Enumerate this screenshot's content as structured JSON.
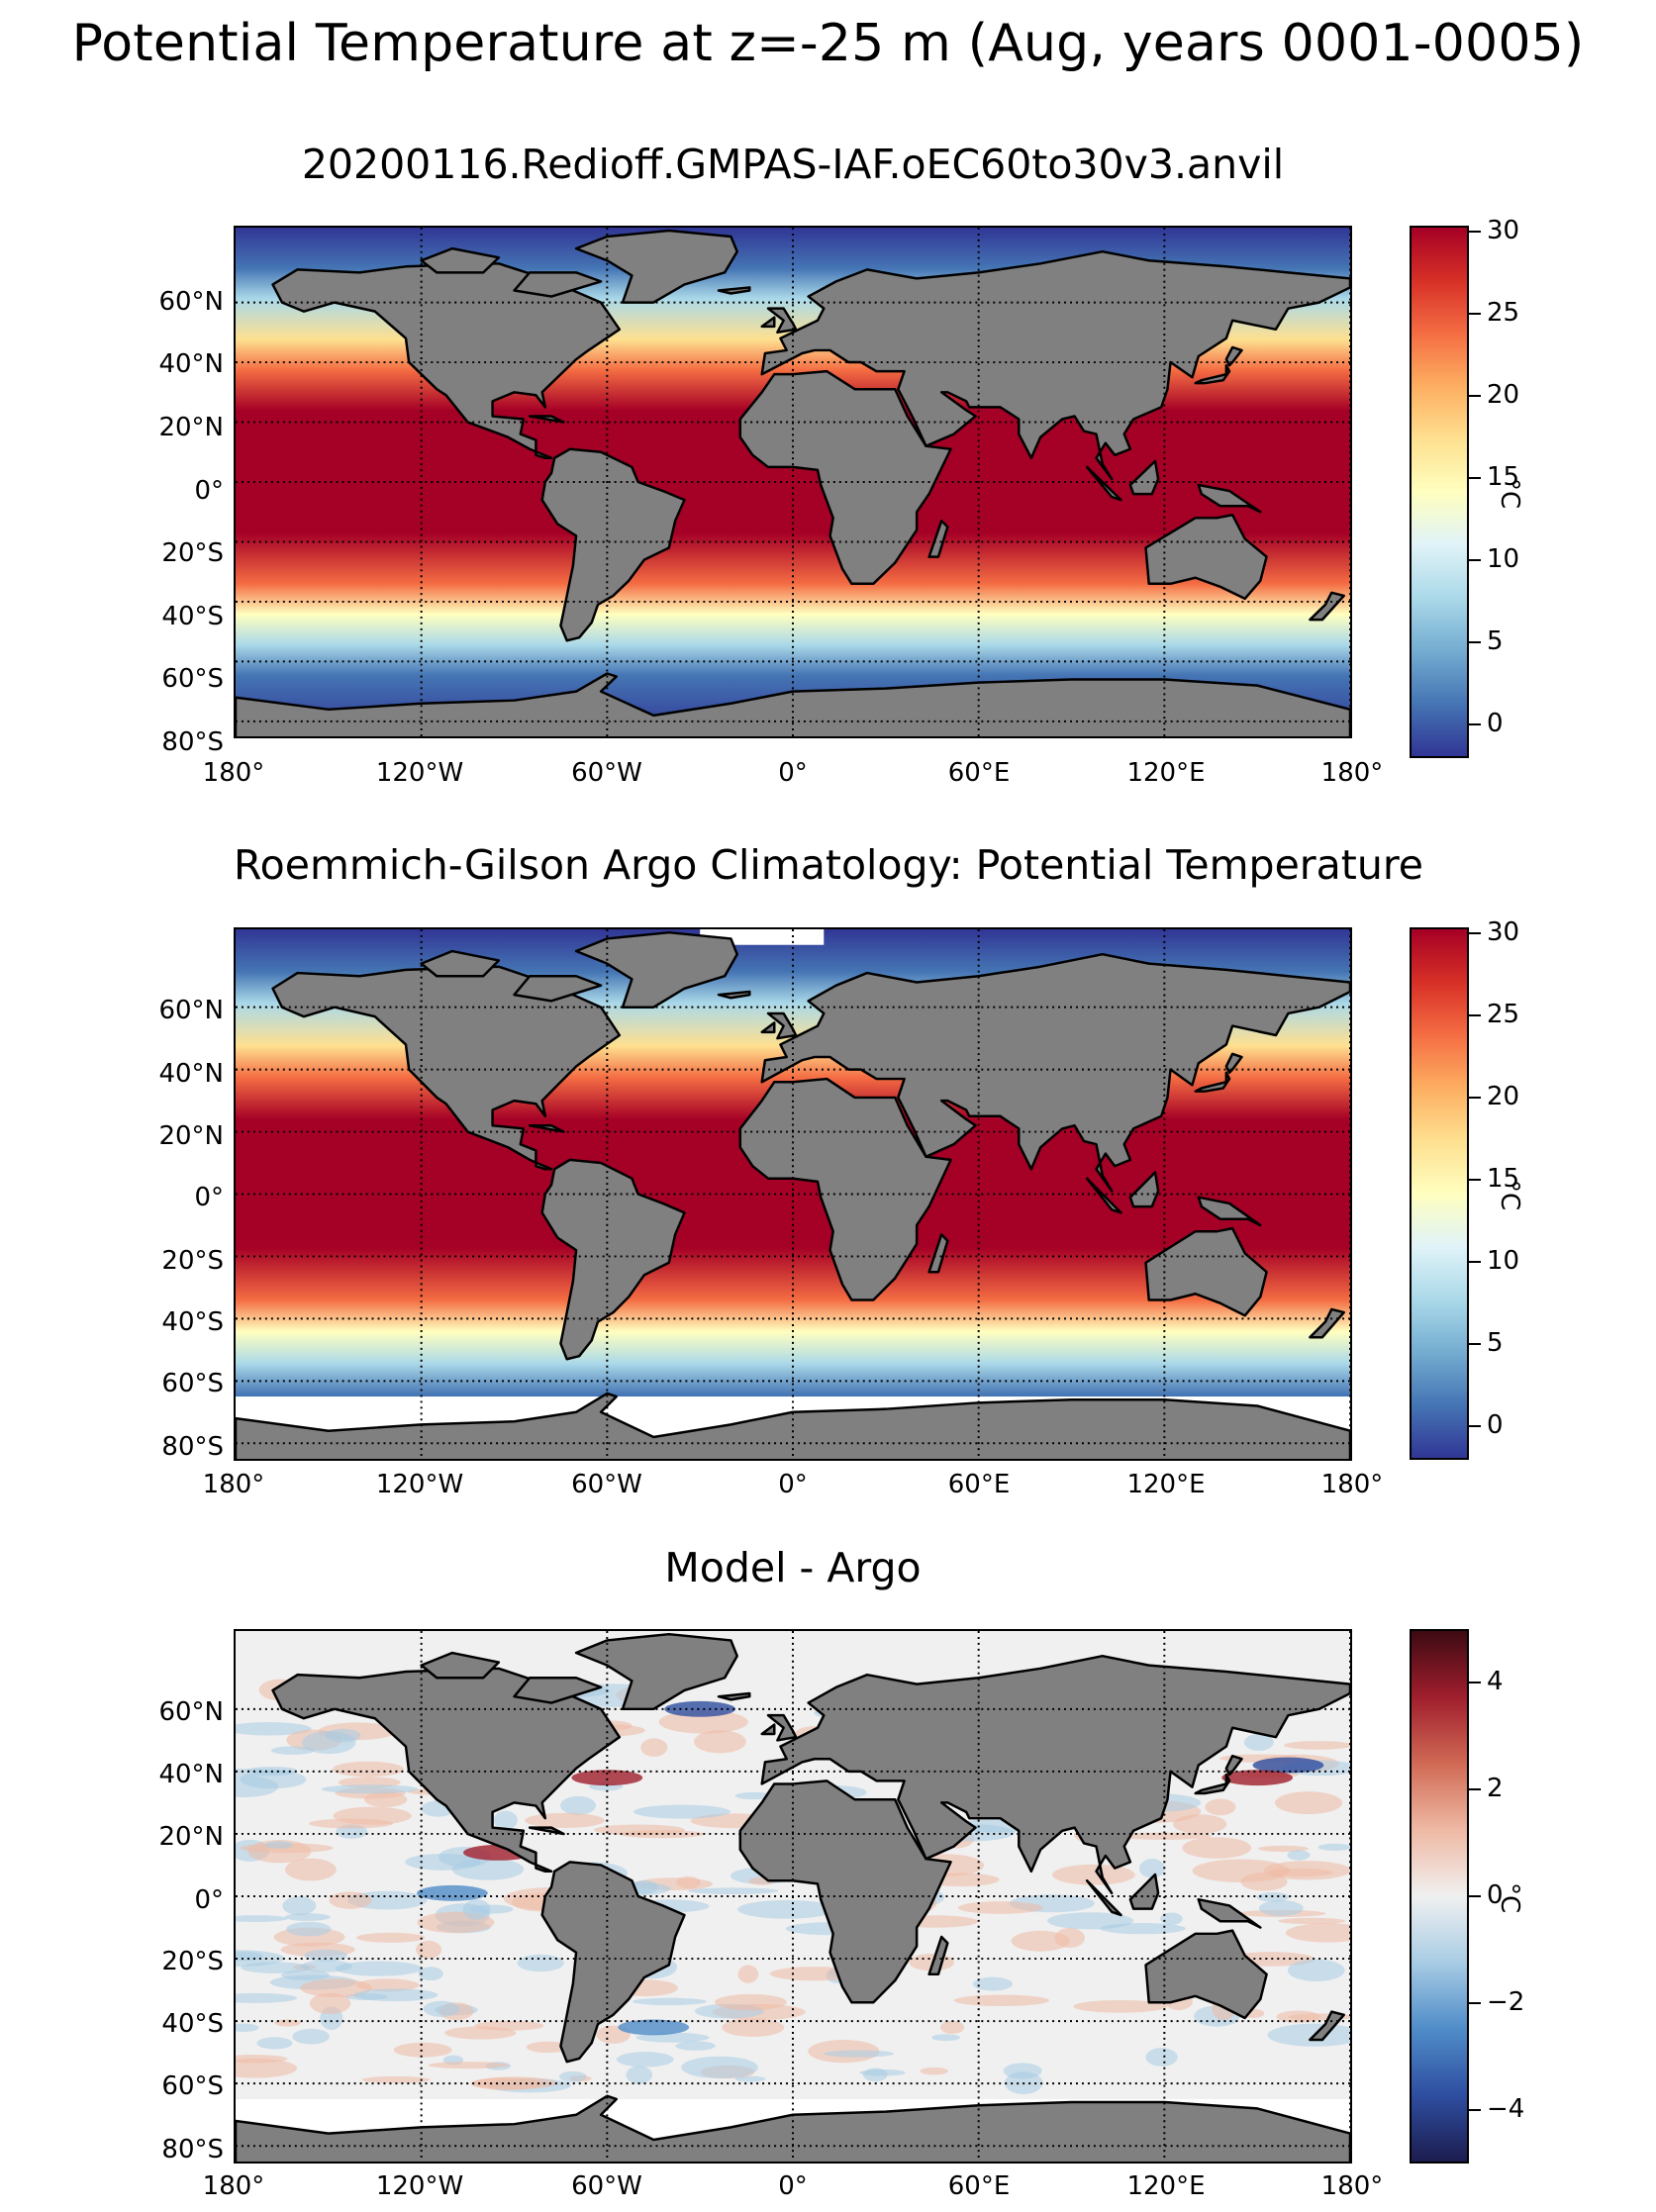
{
  "figure": {
    "title": "Potential Temperature at z=-25 m (Aug, years 0001-0005)"
  },
  "axes": {
    "lat_labels": [
      "60°N",
      "40°N",
      "20°N",
      "0°",
      "20°S",
      "40°S",
      "60°S",
      "80°S"
    ],
    "lon_labels": [
      "180°",
      "120°W",
      "60°W",
      "0°",
      "60°E",
      "120°E",
      "180°"
    ]
  },
  "panels": [
    {
      "title": "20200116.Redioff.GMPAS-IAF.oEC60to30v3.anvil",
      "colorbar": {
        "unit": "°C",
        "ticks": [
          "30",
          "25",
          "20",
          "15",
          "10",
          "5",
          "0"
        ],
        "vmin": -2,
        "vmax": 30,
        "colormap": [
          "#313695",
          "#4575b4",
          "#74add1",
          "#abd9e9",
          "#e0f3f8",
          "#ffffbf",
          "#fee090",
          "#fdae61",
          "#f46d43",
          "#d73027",
          "#a50026"
        ]
      }
    },
    {
      "title": "Roemmich-Gilson Argo Climatology: Potential Temperature",
      "colorbar": {
        "unit": "°C",
        "ticks": [
          "30",
          "25",
          "20",
          "15",
          "10",
          "5",
          "0"
        ],
        "vmin": -2,
        "vmax": 30,
        "colormap": [
          "#313695",
          "#4575b4",
          "#74add1",
          "#abd9e9",
          "#e0f3f8",
          "#ffffbf",
          "#fee090",
          "#fdae61",
          "#f46d43",
          "#d73027",
          "#a50026"
        ]
      }
    },
    {
      "title": "Model - Argo",
      "colorbar": {
        "unit": "°C",
        "ticks": [
          "4",
          "2",
          "0",
          "−2",
          "−4"
        ],
        "vmin": -5,
        "vmax": 5,
        "colormap": [
          "#1c1c4f",
          "#2e4ea0",
          "#4f8cc8",
          "#a8cce4",
          "#f0f0f0",
          "#efb9a4",
          "#d06a55",
          "#a01e2d",
          "#3d0a12"
        ]
      }
    }
  ],
  "colors": {
    "land": "#808080",
    "coast": "#000000",
    "missing": "#ffffff"
  }
}
